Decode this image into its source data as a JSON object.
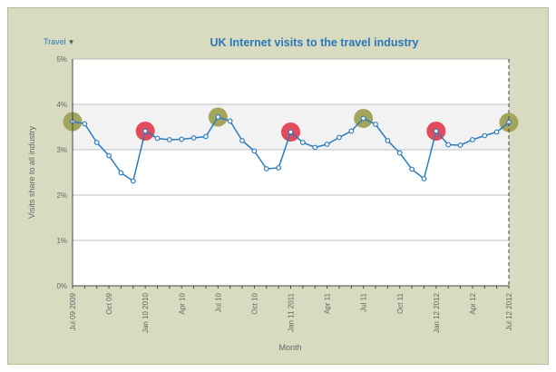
{
  "header": {
    "dropdown_label": "Travel",
    "dropdown_caret": "▼"
  },
  "chart_data": {
    "type": "line",
    "title": "UK Internet visits to the travel industry",
    "xlabel": "Month",
    "ylabel": "Visits share to all industry",
    "ylim": [
      0,
      5
    ],
    "yticks": [
      "0%",
      "1%",
      "2%",
      "3%",
      "4%",
      "5%"
    ],
    "ytick_values": [
      0,
      1,
      2,
      3,
      4,
      5
    ],
    "band": [
      3,
      4
    ],
    "grid": true,
    "x": [
      "Jul 09 2009",
      "Aug 09",
      "Sep 09",
      "Oct 09",
      "Nov 09",
      "Dec 09",
      "Jan 10 2010",
      "Feb 10",
      "Mar 10",
      "Apr 10",
      "May 10",
      "Jun 10",
      "Jul 10",
      "Aug 10",
      "Sep 10",
      "Oct 10",
      "Nov 10",
      "Dec 10",
      "Jan 11 2011",
      "Feb 11",
      "Mar 11",
      "Apr 11",
      "May 11",
      "Jun 11",
      "Jul 11",
      "Aug 11",
      "Sep 11",
      "Oct 11",
      "Nov 11",
      "Dec 11",
      "Jan 12 2012",
      "Feb 12",
      "Mar 12",
      "Apr 12",
      "May 12",
      "Jun 12",
      "Jul 12 2012"
    ],
    "xtick_labels": [
      {
        "index": 0,
        "label": "Jul 09 2009"
      },
      {
        "index": 3,
        "label": "Oct 09"
      },
      {
        "index": 6,
        "label": "Jan 10 2010"
      },
      {
        "index": 9,
        "label": "Apr 10"
      },
      {
        "index": 12,
        "label": "Jul 10"
      },
      {
        "index": 15,
        "label": "Oct 10"
      },
      {
        "index": 18,
        "label": "Jan 11 2011"
      },
      {
        "index": 21,
        "label": "Apr 11"
      },
      {
        "index": 24,
        "label": "Jul 11"
      },
      {
        "index": 27,
        "label": "Oct 11"
      },
      {
        "index": 30,
        "label": "Jan 12 2012"
      },
      {
        "index": 33,
        "label": "Apr 12"
      },
      {
        "index": 36,
        "label": "Jul 12 2012"
      }
    ],
    "series": [
      {
        "color": "#2b7bbd",
        "values": [
          3.62,
          3.57,
          3.16,
          2.87,
          2.49,
          2.31,
          3.41,
          3.25,
          3.22,
          3.23,
          3.26,
          3.29,
          3.72,
          3.63,
          3.2,
          2.97,
          2.58,
          2.6,
          3.39,
          3.16,
          3.05,
          3.12,
          3.27,
          3.41,
          3.69,
          3.56,
          3.2,
          2.93,
          2.57,
          2.36,
          3.41,
          3.11,
          3.1,
          3.22,
          3.31,
          3.39,
          3.6
        ]
      }
    ],
    "highlights": [
      {
        "index": 0,
        "color": "#a3a55c"
      },
      {
        "index": 6,
        "color": "#e44a5e"
      },
      {
        "index": 12,
        "color": "#a3a55c"
      },
      {
        "index": 18,
        "color": "#e44a5e"
      },
      {
        "index": 24,
        "color": "#a3a55c"
      },
      {
        "index": 30,
        "color": "#e44a5e"
      },
      {
        "index": 36,
        "color": "#a3a55c"
      }
    ],
    "colors": {
      "frame": "#d9dbc0",
      "band": "#f2f2f2",
      "title": "#2a78b8"
    }
  }
}
